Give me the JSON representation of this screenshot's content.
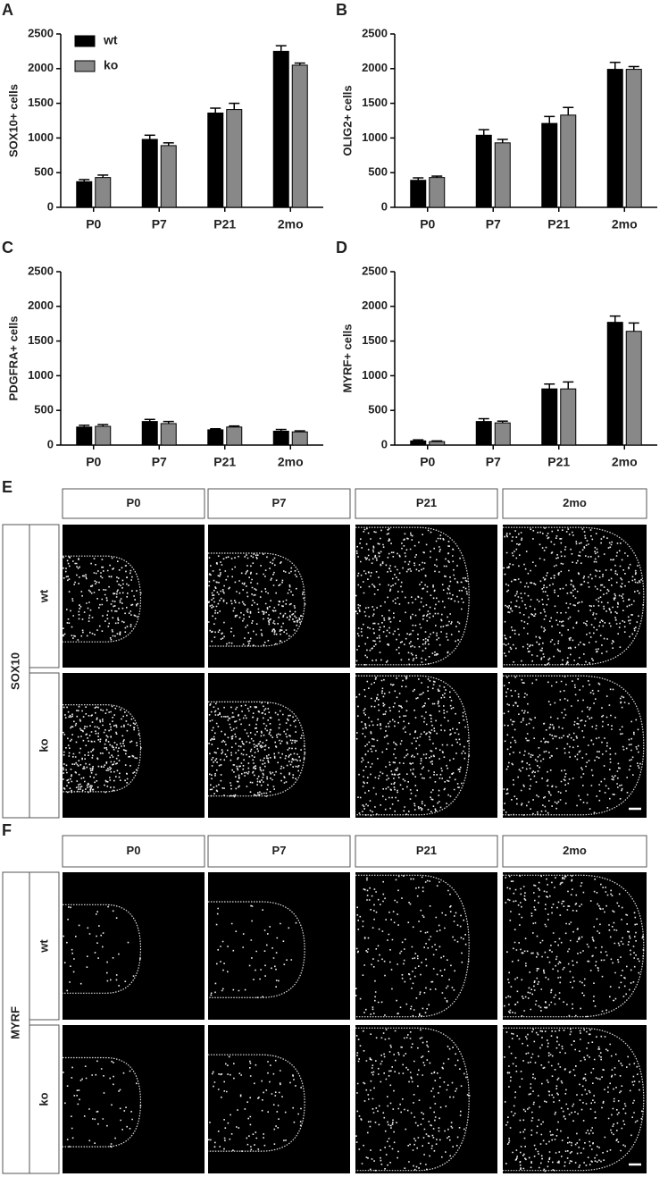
{
  "chart_data": [
    {
      "type": "bar",
      "label": "A",
      "ylabel": "SOX10+ cells",
      "categories": [
        "P0",
        "P7",
        "P21",
        "2mo"
      ],
      "legend": "upper left",
      "series": [
        {
          "name": "wt",
          "color": "#000000",
          "values": [
            370,
            980,
            1360,
            2250
          ],
          "errors": [
            30,
            60,
            70,
            80
          ]
        },
        {
          "name": "ko",
          "color": "#888888",
          "values": [
            430,
            890,
            1410,
            2050
          ],
          "errors": [
            35,
            40,
            90,
            30
          ]
        }
      ],
      "ylim": [
        0,
        2500
      ],
      "yticks": [
        0,
        500,
        1000,
        1500,
        2000,
        2500
      ]
    },
    {
      "type": "bar",
      "label": "B",
      "ylabel": "OLIG2+ cells",
      "categories": [
        "P0",
        "P7",
        "P21",
        "2mo"
      ],
      "series": [
        {
          "color": "#000000",
          "values": [
            390,
            1040,
            1210,
            1990
          ],
          "errors": [
            35,
            80,
            100,
            100
          ]
        },
        {
          "color": "#888888",
          "values": [
            430,
            930,
            1330,
            1990
          ],
          "errors": [
            20,
            50,
            110,
            40
          ]
        }
      ],
      "ylim": [
        0,
        2500
      ],
      "yticks": [
        0,
        500,
        1000,
        1500,
        2000,
        2500
      ]
    },
    {
      "type": "bar",
      "label": "C",
      "ylabel": "PDGFRA+ cells",
      "categories": [
        "P0",
        "P7",
        "P21",
        "2mo"
      ],
      "series": [
        {
          "color": "#000000",
          "values": [
            260,
            340,
            220,
            200
          ],
          "errors": [
            25,
            30,
            15,
            25
          ]
        },
        {
          "color": "#888888",
          "values": [
            270,
            310,
            260,
            190
          ],
          "errors": [
            25,
            30,
            15,
            15
          ]
        }
      ],
      "ylim": [
        0,
        2500
      ],
      "yticks": [
        0,
        500,
        1000,
        1500,
        2000,
        2500
      ]
    },
    {
      "type": "bar",
      "label": "D",
      "ylabel": "MYRF+ cells",
      "categories": [
        "P0",
        "P7",
        "P21",
        "2mo"
      ],
      "series": [
        {
          "color": "#000000",
          "values": [
            60,
            340,
            810,
            1770
          ],
          "errors": [
            15,
            40,
            70,
            90
          ]
        },
        {
          "color": "#888888",
          "values": [
            50,
            320,
            810,
            1640
          ],
          "errors": [
            10,
            25,
            100,
            120
          ]
        }
      ],
      "ylim": [
        0,
        2500
      ],
      "yticks": [
        0,
        500,
        1000,
        1500,
        2000,
        2500
      ]
    }
  ],
  "image_panels": [
    {
      "label": "E",
      "marker": "SOX10",
      "columns": [
        "P0",
        "P7",
        "P21",
        "2mo"
      ],
      "rows": [
        "wt",
        "ko"
      ]
    },
    {
      "label": "F",
      "marker": "MYRF",
      "columns": [
        "P0",
        "P7",
        "P21",
        "2mo"
      ],
      "rows": [
        "wt",
        "ko"
      ]
    }
  ]
}
